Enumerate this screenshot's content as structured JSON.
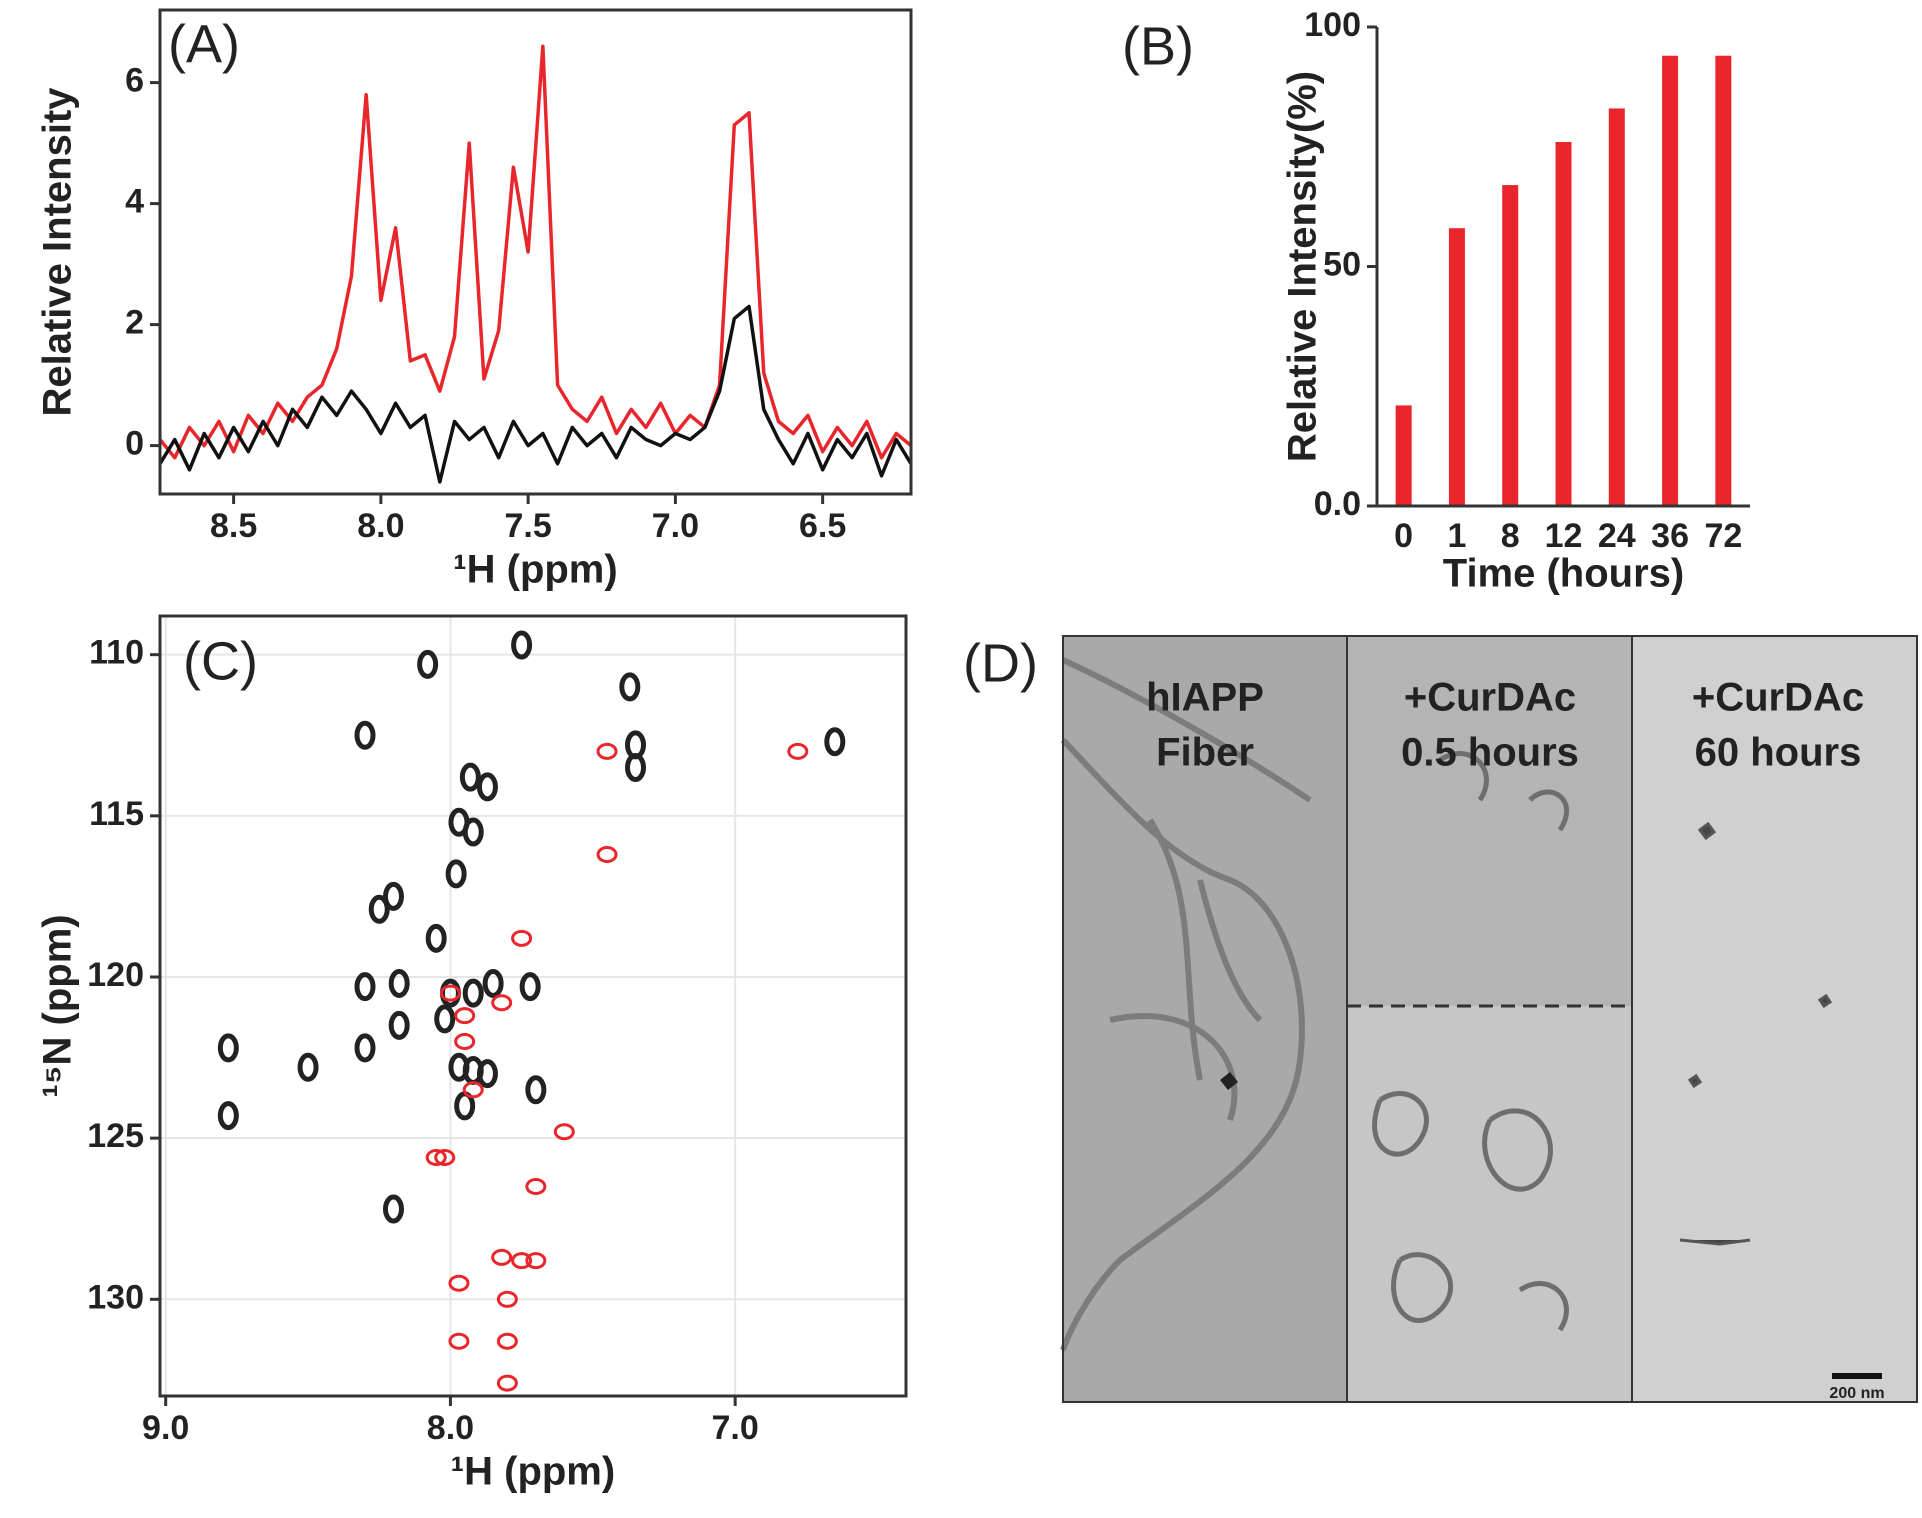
{
  "chart_data": [
    {
      "type": "line",
      "label": "(A)",
      "xlabel": "¹H (ppm)",
      "ylabel": "Relative Intensity",
      "x": [
        8.75,
        8.7,
        8.65,
        8.6,
        8.55,
        8.5,
        8.45,
        8.4,
        8.35,
        8.3,
        8.25,
        8.2,
        8.15,
        8.1,
        8.05,
        8.0,
        7.95,
        7.9,
        7.85,
        7.8,
        7.75,
        7.7,
        7.65,
        7.6,
        7.55,
        7.5,
        7.45,
        7.4,
        7.35,
        7.3,
        7.25,
        7.2,
        7.15,
        7.1,
        7.05,
        7.0,
        6.95,
        6.9,
        6.85,
        6.8,
        6.75,
        6.7,
        6.65,
        6.6,
        6.55,
        6.5,
        6.45,
        6.4,
        6.35,
        6.3,
        6.25,
        6.2
      ],
      "series": [
        {
          "color": "#e8262b",
          "values": [
            0.1,
            -0.2,
            0.3,
            0.0,
            0.4,
            -0.1,
            0.5,
            0.2,
            0.7,
            0.4,
            0.8,
            1.0,
            1.6,
            2.8,
            5.8,
            2.4,
            3.6,
            1.4,
            1.5,
            0.9,
            1.8,
            5.0,
            1.1,
            1.9,
            4.6,
            3.2,
            6.6,
            1.0,
            0.6,
            0.4,
            0.8,
            0.2,
            0.6,
            0.3,
            0.7,
            0.2,
            0.5,
            0.3,
            1.0,
            5.3,
            5.5,
            1.2,
            0.4,
            0.2,
            0.5,
            -0.1,
            0.3,
            0.0,
            0.4,
            -0.2,
            0.2,
            0.0
          ]
        },
        {
          "color": "#111111",
          "values": [
            -0.3,
            0.1,
            -0.4,
            0.2,
            -0.2,
            0.3,
            -0.1,
            0.4,
            0.0,
            0.6,
            0.3,
            0.8,
            0.5,
            0.9,
            0.6,
            0.2,
            0.7,
            0.3,
            0.5,
            -0.6,
            0.4,
            0.1,
            0.3,
            -0.2,
            0.4,
            0.0,
            0.2,
            -0.3,
            0.3,
            0.0,
            0.2,
            -0.2,
            0.3,
            0.1,
            0.0,
            0.2,
            0.1,
            0.3,
            0.9,
            2.1,
            2.3,
            0.6,
            0.1,
            -0.3,
            0.2,
            -0.4,
            0.1,
            -0.2,
            0.2,
            -0.5,
            0.1,
            -0.3
          ]
        }
      ],
      "xlim": [
        8.75,
        6.2
      ],
      "xticks": [
        8.5,
        {
          "value": 8.0,
          "label": "8.0"
        },
        7.5,
        {
          "value": 7.0,
          "label": "7.0"
        },
        6.5
      ],
      "ylim": [
        -0.8,
        7.2
      ],
      "yticks": [
        0,
        2,
        4,
        6
      ],
      "grid": false
    },
    {
      "type": "bar",
      "label": "(B)",
      "xlabel": "Time (hours)",
      "ylabel": "Relative Intensity(%)",
      "categories": [
        "0",
        "1",
        "8",
        "12",
        "24",
        "36",
        "72"
      ],
      "values": [
        21,
        58,
        67,
        76,
        83,
        94,
        94
      ],
      "color": "#e8262b",
      "ylim": [
        0,
        100
      ],
      "yticks": [
        {
          "value": 0,
          "label": "0.0"
        },
        50,
        100
      ],
      "grid": false
    },
    {
      "type": "scatter",
      "label": "(C)",
      "xlabel": "¹H (ppm)",
      "ylabel": "¹⁵N (ppm)",
      "series": [
        {
          "color": "#222222",
          "x": [
            7.75,
            8.08,
            7.37,
            8.3,
            7.35,
            7.35,
            6.65,
            7.93,
            7.87,
            7.97,
            7.92,
            7.98,
            8.2,
            8.25,
            8.05,
            8.3,
            8.18,
            8.0,
            7.92,
            7.85,
            7.72,
            8.18,
            8.02,
            8.3,
            7.97,
            7.92,
            7.87,
            8.5,
            7.95,
            7.7,
            8.78,
            8.2,
            8.78
          ],
          "y": [
            109.7,
            110.3,
            111.0,
            112.5,
            112.8,
            113.5,
            112.7,
            113.8,
            114.1,
            115.2,
            115.5,
            116.8,
            117.5,
            117.9,
            118.8,
            120.3,
            120.2,
            120.5,
            120.5,
            120.2,
            120.3,
            121.5,
            121.3,
            122.2,
            122.8,
            122.9,
            123.0,
            122.8,
            124.0,
            123.5,
            124.3,
            127.2,
            122.2
          ]
        },
        {
          "color": "#e8262b",
          "x": [
            7.45,
            6.78,
            8.0,
            7.95,
            7.95,
            7.75,
            7.82,
            7.92,
            8.02,
            8.05,
            7.6,
            7.7,
            7.82,
            7.75,
            7.7,
            7.97,
            7.8,
            7.97,
            7.8,
            7.8,
            7.45
          ],
          "y": [
            113.0,
            113.0,
            120.5,
            121.2,
            122.0,
            118.8,
            120.8,
            123.5,
            125.6,
            125.6,
            124.8,
            126.5,
            128.7,
            128.8,
            128.8,
            129.5,
            130.0,
            131.3,
            131.3,
            132.6,
            116.2
          ]
        }
      ],
      "xlim": [
        9.02,
        6.4
      ],
      "xticks": [
        {
          "value": 9.0,
          "label": "9.0"
        },
        {
          "value": 8.0,
          "label": "8.0"
        },
        {
          "value": 7.0,
          "label": "7.0"
        }
      ],
      "ylim": [
        133,
        108.8
      ],
      "yticks": [
        110,
        115,
        120,
        125,
        130
      ],
      "grid": true
    }
  ],
  "images": {
    "label": "(D)",
    "panels": [
      {
        "lines": [
          "hIAPP",
          "Fiber"
        ]
      },
      {
        "lines": [
          "+CurDAc",
          "0.5 hours"
        ]
      },
      {
        "lines": [
          "+CurDAc",
          "60 hours"
        ]
      }
    ],
    "scale_bar": "200 nm"
  }
}
